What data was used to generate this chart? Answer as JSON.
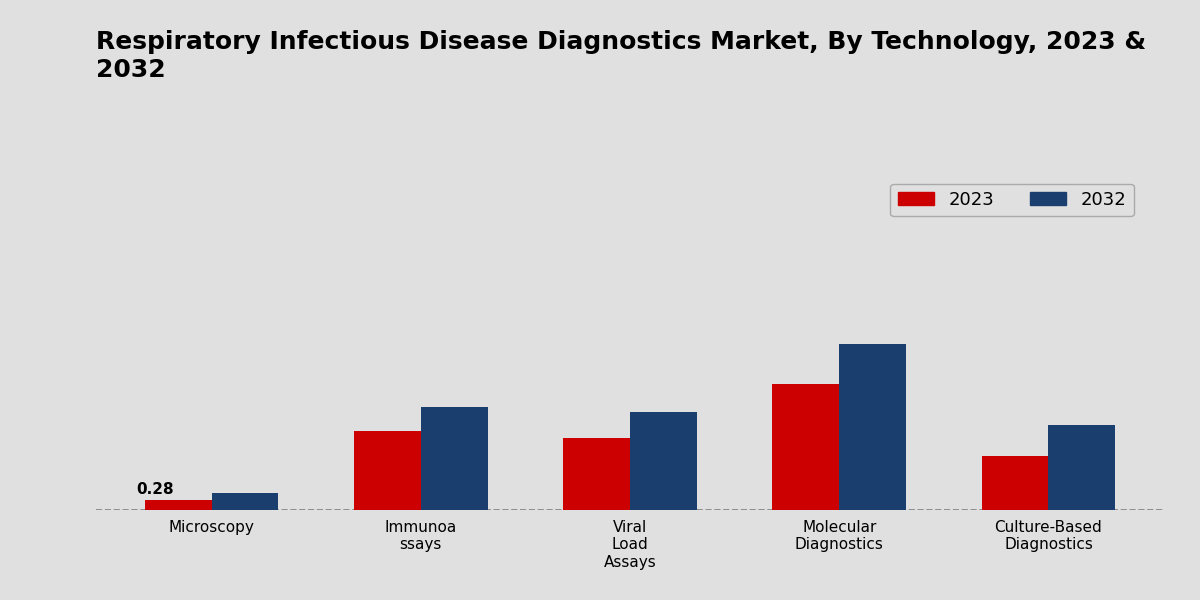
{
  "title": "Respiratory Infectious Disease Diagnostics Market, By Technology, 2023 &\n2032",
  "categories": [
    "Microscopy",
    "Immunoa\nssays",
    "Viral\nLoad\nAssays",
    "Molecular\nDiagnostics",
    "Culture-Based\nDiagnostics"
  ],
  "values_2023": [
    0.28,
    2.2,
    2.0,
    3.5,
    1.5
  ],
  "values_2032": [
    0.48,
    2.85,
    2.72,
    4.6,
    2.35
  ],
  "color_2023": "#cc0000",
  "color_2032": "#1a3f6f",
  "annotation_text": "0.28",
  "annotation_index": 0,
  "background_color": "#e0e0e0",
  "legend_labels": [
    "2023",
    "2032"
  ],
  "bar_width": 0.32,
  "ylim": [
    0,
    9.5
  ],
  "title_fontsize": 18,
  "axis_label_fontsize": 13,
  "tick_fontsize": 11,
  "legend_fontsize": 13
}
